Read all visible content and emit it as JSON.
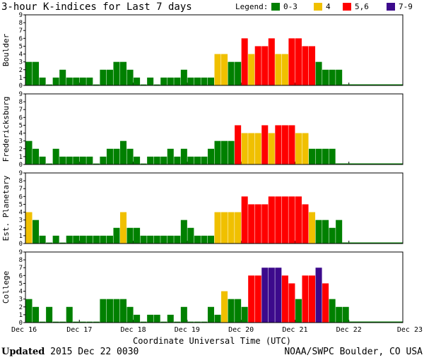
{
  "title": "3-hour K-indices for Last 7 days",
  "legend": {
    "label": "Legend:",
    "items": [
      {
        "label": "0-3",
        "color": "#008000"
      },
      {
        "label": "4",
        "color": "#f0c000"
      },
      {
        "label": "5,6",
        "color": "#ff0000"
      },
      {
        "label": "7-9",
        "color": "#3c0a8c"
      }
    ]
  },
  "footer": {
    "updated_label": "Updated",
    "updated_value": " 2015 Dec 22 0030",
    "credit": "NOAA/SWPC Boulder, CO USA"
  },
  "chart_data": {
    "type": "bar",
    "xlabel": "Coordinate Universal Time (UTC)",
    "x_ticks": [
      "Dec 16",
      "Dec 17",
      "Dec 18",
      "Dec 19",
      "Dec 20",
      "Dec 21",
      "Dec 22",
      "Dec 23"
    ],
    "ylim": [
      0,
      9
    ],
    "y_ticks": [
      0,
      1,
      2,
      3,
      4,
      5,
      6,
      7,
      8,
      9
    ],
    "interval_hours": 3,
    "panels": [
      {
        "name": "Boulder",
        "values": [
          3,
          3,
          1,
          0,
          1,
          2,
          1,
          1,
          1,
          1,
          0,
          2,
          2,
          3,
          3,
          2,
          1,
          0,
          1,
          0,
          1,
          1,
          1,
          2,
          1,
          1,
          1,
          1,
          4,
          4,
          3,
          3,
          6,
          4,
          5,
          5,
          6,
          4,
          4,
          6,
          6,
          5,
          5,
          3,
          2,
          2,
          2
        ]
      },
      {
        "name": "Fredericksburg",
        "values": [
          3,
          2,
          1,
          0,
          2,
          1,
          1,
          1,
          1,
          1,
          0,
          1,
          2,
          2,
          3,
          2,
          1,
          0,
          1,
          1,
          1,
          2,
          1,
          2,
          1,
          1,
          1,
          2,
          3,
          3,
          3,
          5,
          4,
          4,
          4,
          5,
          4,
          5,
          5,
          5,
          4,
          4,
          2,
          2,
          2,
          2
        ]
      },
      {
        "name": "Est. Planetary",
        "values": [
          4,
          3,
          1,
          0,
          1,
          0,
          1,
          1,
          1,
          1,
          1,
          1,
          1,
          2,
          4,
          2,
          2,
          1,
          1,
          1,
          1,
          1,
          1,
          3,
          2,
          1,
          1,
          1,
          4,
          4,
          4,
          4,
          6,
          5,
          5,
          5,
          6,
          6,
          6,
          6,
          6,
          5,
          4,
          3,
          3,
          2,
          3
        ]
      },
      {
        "name": "College",
        "values": [
          3,
          2,
          0,
          2,
          0,
          0,
          2,
          0,
          0,
          0,
          0,
          3,
          3,
          3,
          3,
          2,
          1,
          0,
          1,
          1,
          0,
          1,
          0,
          2,
          0,
          0,
          0,
          2,
          1,
          4,
          3,
          3,
          2,
          6,
          6,
          7,
          7,
          7,
          6,
          5,
          3,
          6,
          6,
          7,
          5,
          3,
          2,
          2
        ]
      }
    ]
  }
}
